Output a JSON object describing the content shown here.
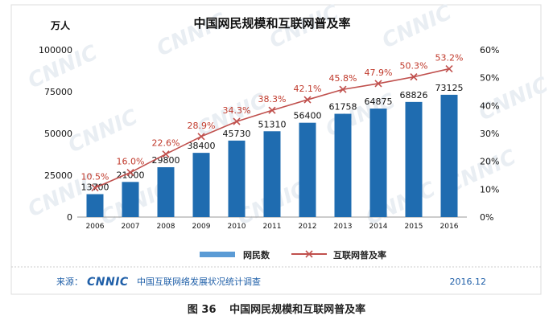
{
  "chart_data": {
    "type": "bar",
    "title": "中国网民规模和互联网普及率",
    "y_unit_label": "万人",
    "categories": [
      "2006",
      "2007",
      "2008",
      "2009",
      "2010",
      "2011",
      "2012",
      "2013",
      "2014",
      "2015",
      "2016"
    ],
    "series": [
      {
        "name": "网民数",
        "type": "bar",
        "axis": "left",
        "values": [
          13700,
          21000,
          29800,
          38400,
          45730,
          51310,
          56400,
          61758,
          64875,
          68826,
          73125
        ],
        "labels": [
          "13700",
          "21000",
          "29800",
          "38400",
          "45730",
          "51310",
          "56400",
          "61758",
          "64875",
          "68826",
          "73125"
        ]
      },
      {
        "name": "互联网普及率",
        "type": "line",
        "axis": "right",
        "values": [
          10.5,
          16.0,
          22.6,
          28.9,
          34.3,
          38.3,
          42.1,
          45.8,
          47.9,
          50.3,
          53.2
        ],
        "labels": [
          "10.5%",
          "16.0%",
          "22.6%",
          "28.9%",
          "34.3%",
          "38.3%",
          "42.1%",
          "45.8%",
          "47.9%",
          "50.3%",
          "53.2%"
        ]
      }
    ],
    "y_left_range": [
      0,
      100000
    ],
    "y_left_ticks": [
      "0",
      "25000",
      "50000",
      "75000",
      "100000"
    ],
    "y_right_range": [
      0,
      60
    ],
    "y_right_ticks": [
      "0%",
      "10%",
      "20%",
      "30%",
      "40%",
      "50%",
      "60%"
    ],
    "legend": [
      "网民数",
      "互联网普及率"
    ],
    "grid": false
  },
  "source": {
    "prefix": "来源：",
    "brand": "CNNIC",
    "org": "中国互联网络发展状况统计调查",
    "date": "2016.12"
  },
  "caption": {
    "figure_number": "图 36",
    "text": "中国网民规模和互联网普及率"
  },
  "watermark_text": "CNNIC",
  "colors": {
    "bar": "#1f6cb0",
    "bar_legend": "#5b9bd5",
    "line": "#c0504d",
    "label_red": "#c0392b",
    "source_blue": "#1f5fa8",
    "frame_border": "#dddddd"
  }
}
